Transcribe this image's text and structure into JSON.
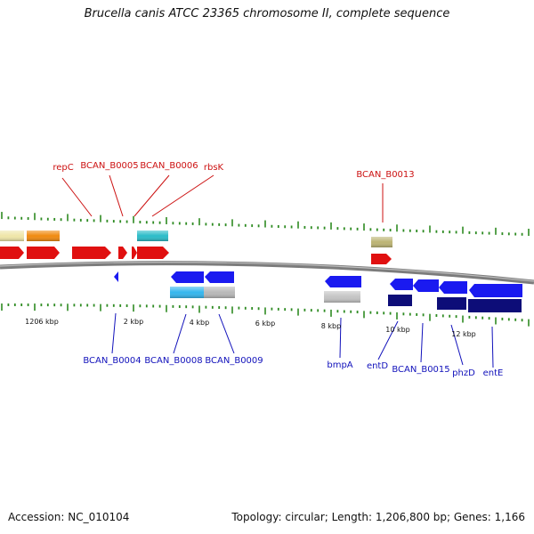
{
  "title": "Brucella canis ATCC 23365 chromosome II, complete sequence",
  "footer": {
    "accession": "Accession: NC_010104",
    "summary": "Topology: circular; Length: 1,206,800 bp; Genes: 1,166"
  },
  "colors": {
    "backbone": "#888888",
    "tick": "#2e8b22",
    "forward_label": "#cc1111",
    "reverse_label": "#1111bb"
  },
  "scale_labels": [
    "1206 kbp",
    "2 kbp",
    "4 kbp",
    "6 kbp",
    "8 kbp",
    "10 kbp",
    "12 kbp"
  ],
  "forward_labels": [
    "repC",
    "BCAN_B0005",
    "BCAN_B0006",
    "rbsK",
    "BCAN_B0013"
  ],
  "reverse_labels": [
    "BCAN_B0004",
    "BCAN_B0008",
    "BCAN_B0009",
    "bmpA",
    "entD",
    "BCAN_B0015",
    "phzD",
    "entE"
  ],
  "feature_colors": {
    "pale_yellow": "#efe6a8",
    "orange": "#f08a10",
    "teal": "#2bbcc8",
    "olive": "#bcb474",
    "red": "#e01010",
    "blue": "#1a1af0",
    "sky": "#33b6ee",
    "gray": "#b8b8b8",
    "navy": "#0d0d78"
  }
}
